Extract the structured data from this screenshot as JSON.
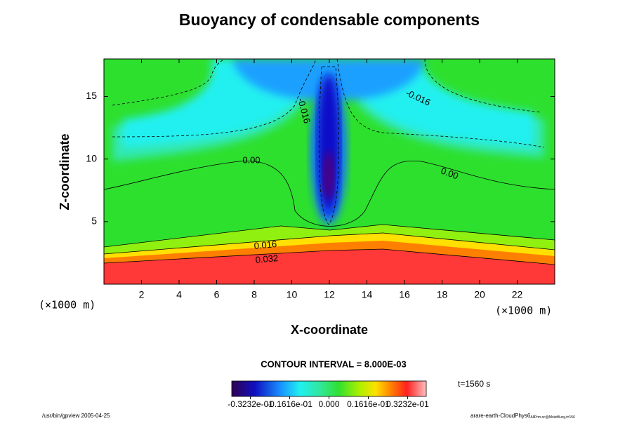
{
  "chart_data": {
    "type": "contour",
    "title": "Buoyancy of condensable components",
    "xlabel": "X-coordinate",
    "ylabel": "Z-coordinate",
    "x_unit": "(×1000 m)",
    "y_unit": "(×1000 m)",
    "xlim": [
      0,
      24
    ],
    "ylim": [
      0,
      18
    ],
    "xticks": [
      2,
      4,
      6,
      8,
      10,
      12,
      14,
      16,
      18,
      20,
      22
    ],
    "yticks": [
      5,
      10,
      15
    ],
    "contour_labels": [
      "-0.016",
      "-0.016",
      "0.00",
      "0.00",
      "0.016",
      "0.032"
    ],
    "contour_interval": "CONTOUR INTERVAL = 8.000E-03",
    "time_label": "t=1560 s",
    "colorbar_lim": [
      -0.04,
      0.04
    ],
    "colorbar_ticks": [
      {
        "value": -0.03232,
        "label": "-0.3232e-01"
      },
      {
        "value": -0.01616,
        "label": "-0.1616e-01"
      },
      {
        "value": 0,
        "label": "0.000"
      },
      {
        "value": 0.01616,
        "label": "0.1616e-01"
      },
      {
        "value": 0.03232,
        "label": "0.3232e-01"
      }
    ],
    "footer_left": "/usr/bin/gpview 2005-04-25",
    "footer_right": "arare-earth-CloudPhys6",
    "footer_right_sub": "AllPrm.nc@MoistBuoy,t=156"
  }
}
